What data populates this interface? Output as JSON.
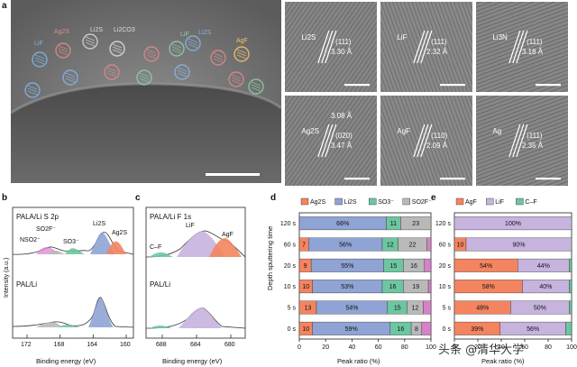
{
  "panels": {
    "a": "a",
    "b": "b",
    "c": "c",
    "d": "d",
    "e": "e"
  },
  "panel_a": {
    "overview_labels": [
      "Ag2S",
      "Li2S",
      "Li2CO3",
      "LiF",
      "LiF",
      "AgF",
      "Li2S"
    ],
    "tiles": [
      {
        "phase": "Li2S",
        "plane": "(111)",
        "spacing": "3.30 Å"
      },
      {
        "phase": "LiF",
        "plane": "(111)",
        "spacing": "2.32 Å"
      },
      {
        "phase": "Li3N",
        "plane": "(111)",
        "spacing": "3.18 Å"
      },
      {
        "phase": "Ag2S",
        "plane": "(020)",
        "spacing": "3.47 Å",
        "extra": "3.08 Å"
      },
      {
        "phase": "AgF",
        "plane": "(110)",
        "spacing": "2.09 Å"
      },
      {
        "phase": "Ag",
        "plane": "(111)",
        "spacing": "2.35 Å"
      }
    ]
  },
  "panel_b": {
    "top_title": "PALA/Li S 2p",
    "bottom_title": "PAL/Li",
    "ylabel": "Intensity (a.u.)",
    "xlabel": "Binding energy (eV)",
    "ticks": [
      "172",
      "168",
      "164",
      "160"
    ],
    "peak_labels": [
      "NSO2⁻",
      "SO2F⁻",
      "SO3⁻",
      "Li2S",
      "Ag2S"
    ]
  },
  "panel_c": {
    "top_title": "PALA/Li F 1s",
    "bottom_title": "PAL/Li",
    "xlabel": "Binding energy (eV)",
    "ticks": [
      "688",
      "684",
      "680"
    ],
    "peak_labels": [
      "C–F",
      "LiF",
      "AgF"
    ]
  },
  "chart_data": [
    {
      "type": "bar",
      "orientation": "horizontal-stacked",
      "panel": "d",
      "ylabel": "Depth sputtering time",
      "xlabel": "Peak ratio (%)",
      "categories": [
        "120 s",
        "60 s",
        "20 s",
        "10 s",
        "5 s",
        "0 s"
      ],
      "xlim": [
        0,
        100
      ],
      "xticks": [
        "0",
        "20",
        "40",
        "60",
        "80",
        "100"
      ],
      "legend": [
        "Ag2S",
        "Li2S",
        "SO3⁻",
        "SO2F⁻"
      ],
      "colors": {
        "Ag2S": "#f4845f",
        "Li2S": "#8fa3d4",
        "SO3-": "#6cc6a0",
        "SO2F-": "#b9b9b9",
        "NSO2-": "#d880c8"
      },
      "series": [
        {
          "name": "Ag2S",
          "values": [
            0,
            7,
            9,
            10,
            13,
            10
          ],
          "labels": [
            "",
            "7",
            "9",
            "10",
            "13",
            "10"
          ]
        },
        {
          "name": "Li2S",
          "values": [
            66,
            56,
            55,
            53,
            54,
            59
          ],
          "labels": [
            "66%",
            "56%",
            "55%",
            "53%",
            "54%",
            "59%"
          ]
        },
        {
          "name": "SO3⁻",
          "values": [
            11,
            12,
            15,
            16,
            15,
            16
          ],
          "labels": [
            "11",
            "12",
            "15",
            "16",
            "15",
            "16"
          ]
        },
        {
          "name": "SO2F⁻",
          "values": [
            23,
            22,
            16,
            19,
            12,
            8
          ],
          "labels": [
            "23",
            "22",
            "16",
            "19",
            "12",
            "8"
          ]
        },
        {
          "name": "",
          "values": [
            0,
            3,
            5,
            2,
            6,
            7
          ],
          "labels": [
            "",
            "",
            "",
            "",
            "",
            ""
          ]
        }
      ]
    },
    {
      "type": "bar",
      "orientation": "horizontal-stacked",
      "panel": "e",
      "xlabel": "Peak ratio (%)",
      "categories": [
        "120 s",
        "60 s",
        "20 s",
        "10 s",
        "5 s",
        "0 s"
      ],
      "xlim": [
        0,
        100
      ],
      "xticks": [
        "0",
        "20",
        "40",
        "60",
        "80",
        "100"
      ],
      "legend": [
        "AgF",
        "LiF",
        "C–F"
      ],
      "colors": {
        "AgF": "#f4845f",
        "LiF": "#c6b3de",
        "C-F": "#6cc6a0"
      },
      "series": [
        {
          "name": "AgF",
          "values": [
            0,
            10,
            54,
            58,
            48,
            39
          ],
          "labels": [
            "",
            "10",
            "54%",
            "58%",
            "48%",
            "39%"
          ]
        },
        {
          "name": "LiF",
          "values": [
            100,
            90,
            44,
            40,
            50,
            56
          ],
          "labels": [
            "100%",
            "90%",
            "44%",
            "40%",
            "50%",
            "56%"
          ]
        },
        {
          "name": "C–F",
          "values": [
            0,
            0,
            2,
            2,
            2,
            5
          ],
          "labels": [
            "",
            "",
            "",
            "",
            "",
            ""
          ]
        }
      ]
    }
  ],
  "watermark": "头条 @清华大学"
}
